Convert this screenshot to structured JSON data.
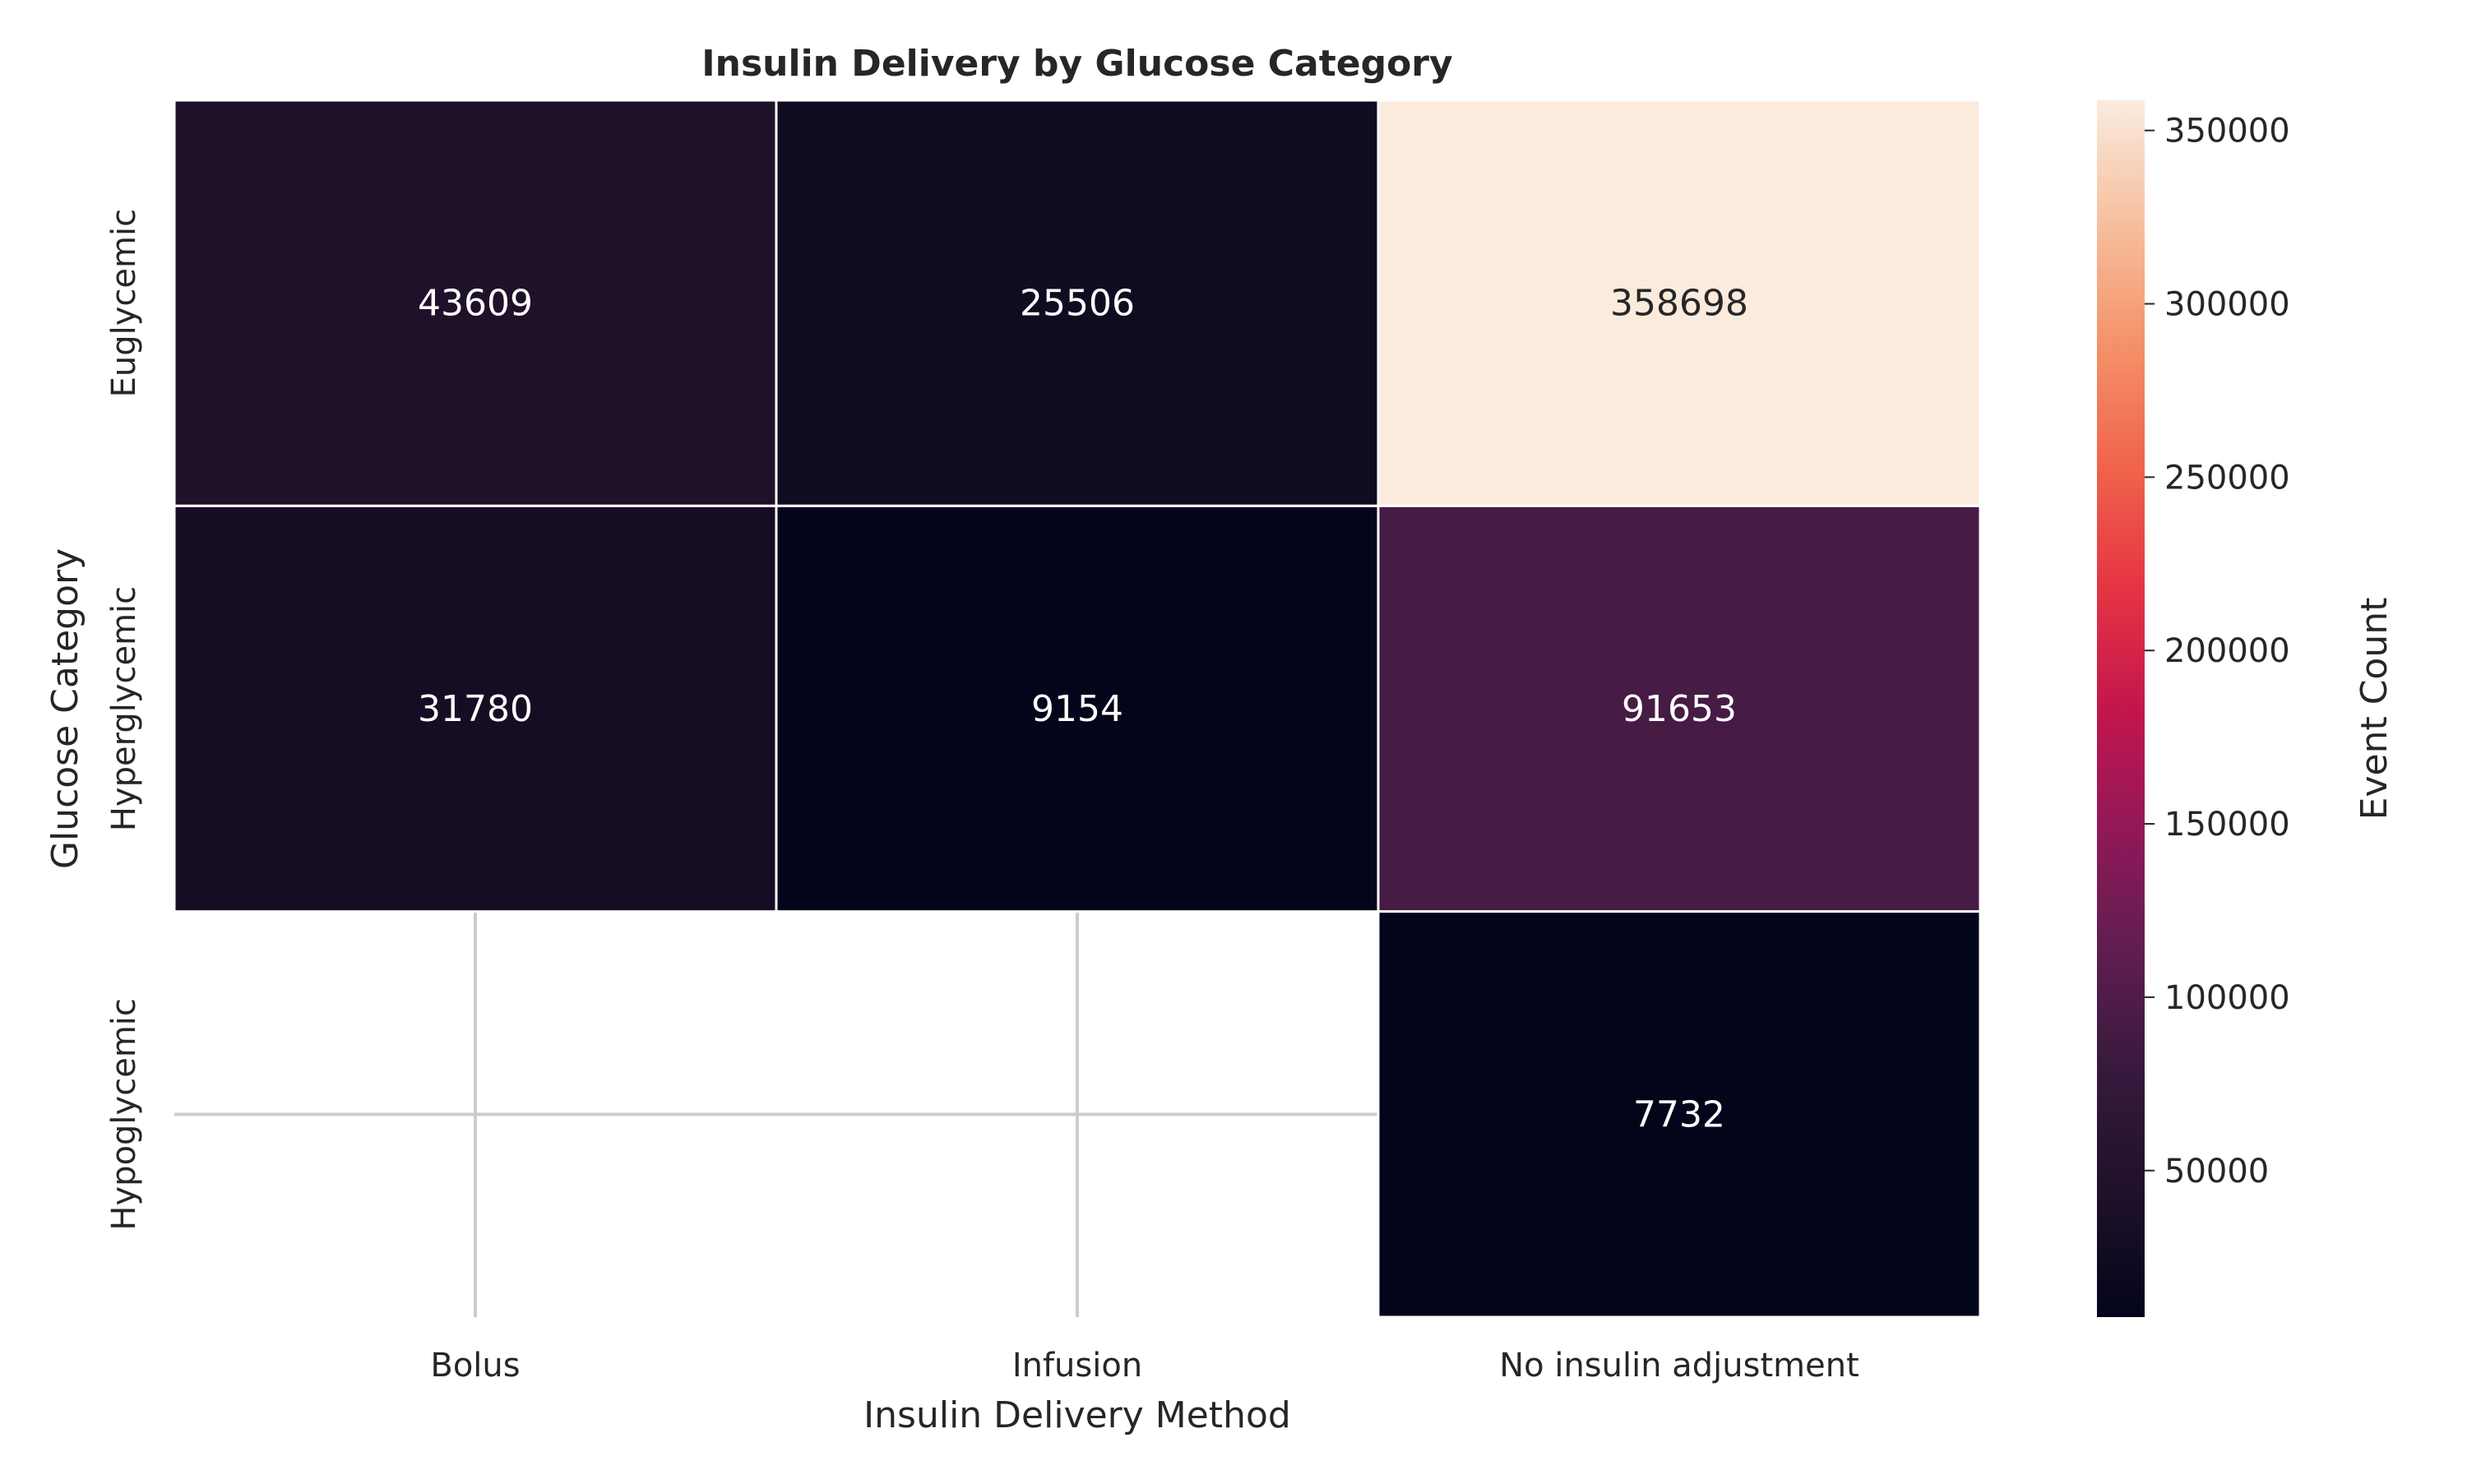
{
  "chart_data": {
    "type": "heatmap",
    "title": "Insulin Delivery by Glucose Category",
    "xlabel": "Insulin Delivery Method",
    "ylabel": "Glucose Category",
    "x_categories": [
      "Bolus",
      "Infusion",
      "No insulin adjustment"
    ],
    "y_categories": [
      "Euglycemic",
      "Hyperglycemic",
      "Hypoglycemic"
    ],
    "values": [
      [
        43609,
        25506,
        358698
      ],
      [
        31780,
        9154,
        91653
      ],
      [
        null,
        null,
        7732
      ]
    ],
    "colorbar": {
      "label": "Event Count",
      "range": [
        7732,
        358698
      ],
      "ticks": [
        50000,
        100000,
        150000,
        200000,
        250000,
        300000,
        350000
      ],
      "colormap": "rocket"
    },
    "grid": true,
    "missing_cells": "blank"
  }
}
